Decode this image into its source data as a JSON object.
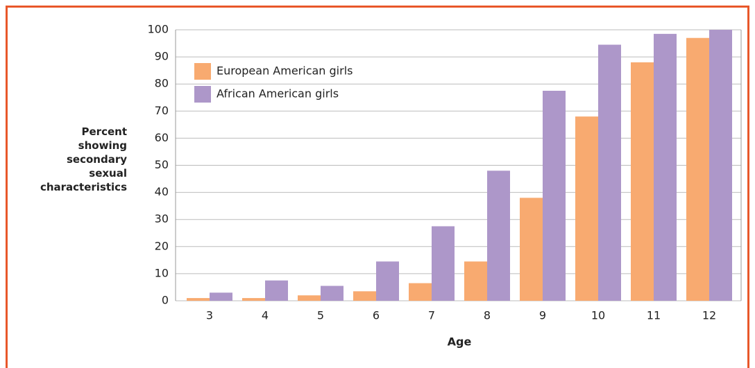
{
  "chart_data": {
    "type": "bar",
    "y_label": "Percent showing secondary sexual characteristics",
    "x_label": "Age",
    "categories": [
      "3",
      "4",
      "5",
      "6",
      "7",
      "8",
      "9",
      "10",
      "11",
      "12"
    ],
    "series": [
      {
        "name": "European American girls",
        "color": "#f8aa70",
        "values": [
          1,
          1,
          2,
          3.5,
          6.5,
          14.5,
          38,
          68,
          88,
          97
        ]
      },
      {
        "name": "African American girls",
        "color": "#ad97c9",
        "values": [
          3,
          7.5,
          5.5,
          14.5,
          27.5,
          48,
          77.5,
          94.5,
          98.5,
          100
        ]
      }
    ],
    "ylim": [
      0,
      100
    ],
    "yticks": [
      0,
      10,
      20,
      30,
      40,
      50,
      60,
      70,
      80,
      90,
      100
    ],
    "grid": true,
    "legend": "top-left"
  }
}
